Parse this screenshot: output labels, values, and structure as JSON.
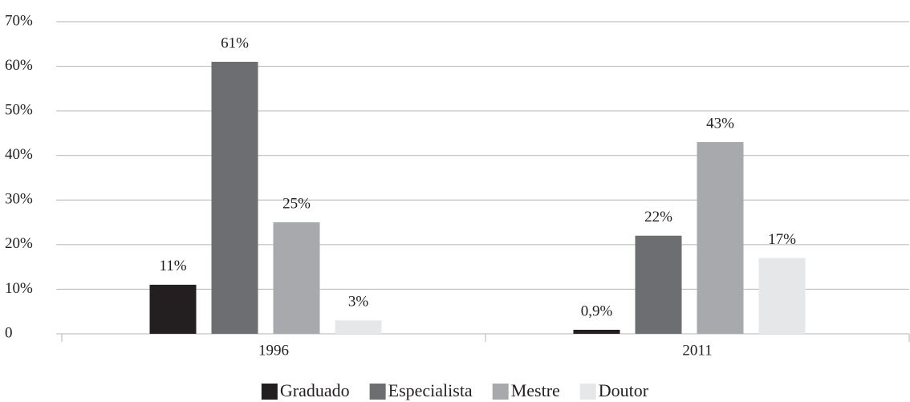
{
  "chart_data": {
    "type": "bar",
    "categories": [
      "1996",
      "2011"
    ],
    "series": [
      {
        "name": "Graduado",
        "color": "#231f20",
        "values": [
          11,
          0.9
        ],
        "value_labels": [
          "11%",
          "0,9%"
        ]
      },
      {
        "name": "Especialista",
        "color": "#6d6e71",
        "values": [
          61,
          22
        ],
        "value_labels": [
          "61%",
          "22%"
        ]
      },
      {
        "name": "Mestre",
        "color": "#a7a9ac",
        "values": [
          25,
          43
        ],
        "value_labels": [
          "25%",
          "43%"
        ]
      },
      {
        "name": "Doutor",
        "color": "#e6e7e8",
        "values": [
          3,
          17
        ],
        "value_labels": [
          "3%",
          "17%"
        ]
      }
    ],
    "ylim": [
      0,
      70
    ],
    "yticks": [
      0,
      {
        "value": 10,
        "label": "10%"
      },
      {
        "value": 20,
        "label": "20%"
      },
      {
        "value": 30,
        "label": "30%"
      },
      {
        "value": 40,
        "label": "40%"
      },
      {
        "value": 50,
        "label": "50%"
      },
      {
        "value": 60,
        "label": "60%"
      },
      {
        "value": 70,
        "label": "70%"
      }
    ],
    "grid": true,
    "legend": "bottom"
  }
}
